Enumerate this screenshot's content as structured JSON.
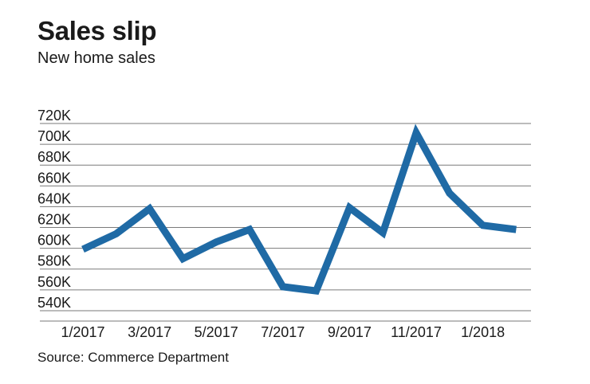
{
  "title": "Sales slip",
  "subtitle": "New home sales",
  "source": "Source: Commerce Department",
  "chart_data": {
    "type": "line",
    "title": "Sales slip",
    "subtitle": "New home sales",
    "xlabel": "",
    "ylabel": "",
    "x": [
      "1/2017",
      "2/2017",
      "3/2017",
      "4/2017",
      "5/2017",
      "6/2017",
      "7/2017",
      "8/2017",
      "9/2017",
      "10/2017",
      "11/2017",
      "12/2017",
      "1/2018",
      "2/2018"
    ],
    "x_tick_labels": [
      "1/2017",
      "3/2017",
      "5/2017",
      "7/2017",
      "9/2017",
      "11/2017",
      "1/2018"
    ],
    "series": [
      {
        "values": [
          599,
          614,
          638,
          590,
          606,
          618,
          563,
          559,
          639,
          615,
          711,
          653,
          622,
          618
        ]
      }
    ],
    "y_ticks": [
      540,
      560,
      580,
      600,
      620,
      640,
      660,
      680,
      700,
      720
    ],
    "y_tick_labels": [
      "540K",
      "560K",
      "580K",
      "600K",
      "620K",
      "640K",
      "660K",
      "680K",
      "700K",
      "720K"
    ],
    "ylim": [
      530,
      720
    ],
    "grid": true,
    "line_color": "#1f6aa5",
    "grid_color": "#7a7a7a"
  }
}
